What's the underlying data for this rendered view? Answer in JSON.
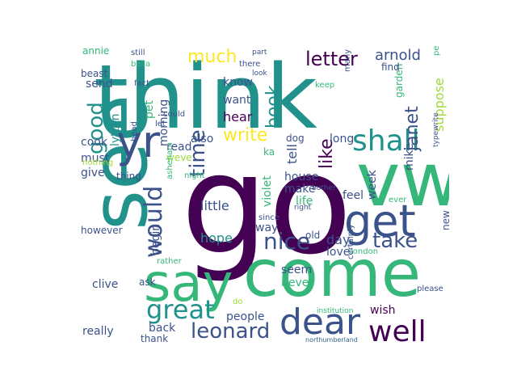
{
  "palette": {
    "purple": "#440154",
    "indigo": "#3b528b",
    "teal": "#21918c",
    "green": "#35b779",
    "lime": "#a0da39",
    "yellow": "#fde725",
    "blue": "#31688e",
    "seafoam": "#5ec962"
  },
  "words": [
    {
      "text": "think",
      "color": "teal"
    },
    {
      "text": "go",
      "color": "purple"
    },
    {
      "text": "see",
      "color": "teal"
    },
    {
      "text": "come",
      "color": "green"
    },
    {
      "text": "say",
      "color": "green"
    },
    {
      "text": "vw",
      "color": "green"
    },
    {
      "text": "get",
      "color": "indigo"
    },
    {
      "text": "dear",
      "color": "indigo"
    },
    {
      "text": "well",
      "color": "purple"
    },
    {
      "text": "yr",
      "color": "indigo"
    },
    {
      "text": "shall",
      "color": "teal"
    },
    {
      "text": "would",
      "color": "indigo"
    },
    {
      "text": "great",
      "color": "teal"
    },
    {
      "text": "leonard",
      "color": "indigo"
    },
    {
      "text": "nice",
      "color": "indigo"
    },
    {
      "text": "take",
      "color": "indigo"
    },
    {
      "text": "good",
      "color": "teal"
    },
    {
      "text": "much",
      "color": "yellow"
    },
    {
      "text": "letter",
      "color": "purple"
    },
    {
      "text": "book",
      "color": "teal"
    },
    {
      "text": "time",
      "color": "indigo"
    },
    {
      "text": "write",
      "color": "yellow"
    },
    {
      "text": "janet",
      "color": "indigo"
    },
    {
      "text": "like",
      "color": "purple"
    },
    {
      "text": "arnold",
      "color": "indigo"
    },
    {
      "text": "suppose",
      "color": "lime"
    },
    {
      "text": "tell",
      "color": "indigo"
    },
    {
      "text": "know",
      "color": "indigo"
    },
    {
      "text": "want",
      "color": "indigo"
    },
    {
      "text": "hear",
      "color": "purple"
    },
    {
      "text": "mike",
      "color": "indigo"
    },
    {
      "text": "send",
      "color": "indigo"
    },
    {
      "text": "lytton",
      "color": "teal"
    },
    {
      "text": "pet",
      "color": "green"
    },
    {
      "text": "morning",
      "color": "indigo"
    },
    {
      "text": "cook",
      "color": "indigo"
    },
    {
      "text": "must",
      "color": "indigo"
    },
    {
      "text": "read",
      "color": "indigo"
    },
    {
      "text": "weve",
      "color": "lime"
    },
    {
      "text": "give",
      "color": "indigo"
    },
    {
      "text": "thing",
      "color": "indigo"
    },
    {
      "text": "also",
      "color": "indigo"
    },
    {
      "text": "ka",
      "color": "green"
    },
    {
      "text": "dog",
      "color": "indigo"
    },
    {
      "text": "long",
      "color": "indigo"
    },
    {
      "text": "week",
      "color": "indigo"
    },
    {
      "text": "house",
      "color": "indigo"
    },
    {
      "text": "make",
      "color": "indigo"
    },
    {
      "text": "life",
      "color": "green"
    },
    {
      "text": "feel",
      "color": "indigo"
    },
    {
      "text": "little",
      "color": "indigo"
    },
    {
      "text": "violet",
      "color": "green"
    },
    {
      "text": "hope",
      "color": "teal"
    },
    {
      "text": "way",
      "color": "indigo"
    },
    {
      "text": "day",
      "color": "indigo"
    },
    {
      "text": "love",
      "color": "indigo"
    },
    {
      "text": "old",
      "color": "indigo"
    },
    {
      "text": "london",
      "color": "green"
    },
    {
      "text": "new",
      "color": "indigo"
    },
    {
      "text": "begin",
      "color": "indigo"
    },
    {
      "text": "seem",
      "color": "indigo"
    },
    {
      "text": "never",
      "color": "green"
    },
    {
      "text": "people",
      "color": "indigo"
    },
    {
      "text": "clive",
      "color": "indigo"
    },
    {
      "text": "really",
      "color": "indigo"
    },
    {
      "text": "back",
      "color": "indigo"
    },
    {
      "text": "thank",
      "color": "indigo"
    },
    {
      "text": "wish",
      "color": "purple"
    },
    {
      "text": "please",
      "color": "indigo"
    },
    {
      "text": "however",
      "color": "indigo"
    },
    {
      "text": "ask",
      "color": "indigo"
    },
    {
      "text": "rather",
      "color": "green"
    },
    {
      "text": "certainly",
      "color": "indigo"
    },
    {
      "text": "institution",
      "color": "green"
    },
    {
      "text": "northumberland",
      "color": "blue"
    },
    {
      "text": "do",
      "color": "lime"
    },
    {
      "text": "annie",
      "color": "green"
    },
    {
      "text": "beast",
      "color": "indigo"
    },
    {
      "text": "still",
      "color": "indigo"
    },
    {
      "text": "bella",
      "color": "green"
    },
    {
      "text": "fact",
      "color": "indigo"
    },
    {
      "text": "let",
      "color": "indigo"
    },
    {
      "text": "could",
      "color": "indigo"
    },
    {
      "text": "head",
      "color": "indigo"
    },
    {
      "text": "nothing",
      "color": "lime"
    },
    {
      "text": "there",
      "color": "indigo"
    },
    {
      "text": "part",
      "color": "indigo"
    },
    {
      "text": "look",
      "color": "indigo"
    },
    {
      "text": "many",
      "color": "indigo"
    },
    {
      "text": "keep",
      "color": "green"
    },
    {
      "text": "garden",
      "color": "green"
    },
    {
      "text": "perhaps",
      "color": "green"
    },
    {
      "text": "find",
      "color": "indigo"
    },
    {
      "text": "typewrite",
      "color": "indigo"
    },
    {
      "text": "asheham",
      "color": "green"
    },
    {
      "text": "night",
      "color": "green"
    },
    {
      "text": "bother",
      "color": "indigo"
    },
    {
      "text": "since",
      "color": "indigo"
    },
    {
      "text": "right",
      "color": "indigo"
    },
    {
      "text": "ever",
      "color": "green"
    }
  ]
}
